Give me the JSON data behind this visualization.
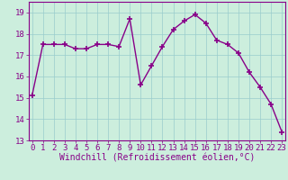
{
  "x": [
    0,
    1,
    2,
    3,
    4,
    5,
    6,
    7,
    8,
    9,
    10,
    11,
    12,
    13,
    14,
    15,
    16,
    17,
    18,
    19,
    20,
    21,
    22,
    23
  ],
  "y": [
    15.1,
    17.5,
    17.5,
    17.5,
    17.3,
    17.3,
    17.5,
    17.5,
    17.4,
    18.7,
    15.6,
    16.5,
    17.4,
    18.2,
    18.6,
    18.9,
    18.5,
    17.7,
    17.5,
    17.1,
    16.2,
    15.5,
    14.7,
    13.4
  ],
  "line_color": "#880088",
  "marker": "+",
  "marker_size": 5,
  "marker_lw": 1.2,
  "bg_color": "#cceedd",
  "grid_color": "#99cccc",
  "xlabel": "Windchill (Refroidissement éolien,°C)",
  "ylabel": "",
  "ylim": [
    13,
    19.5
  ],
  "xlim": [
    -0.3,
    23.3
  ],
  "yticks": [
    13,
    14,
    15,
    16,
    17,
    18,
    19
  ],
  "xticks": [
    0,
    1,
    2,
    3,
    4,
    5,
    6,
    7,
    8,
    9,
    10,
    11,
    12,
    13,
    14,
    15,
    16,
    17,
    18,
    19,
    20,
    21,
    22,
    23
  ],
  "tick_label_fontsize": 6.5,
  "xlabel_fontsize": 7,
  "line_width": 1.0
}
